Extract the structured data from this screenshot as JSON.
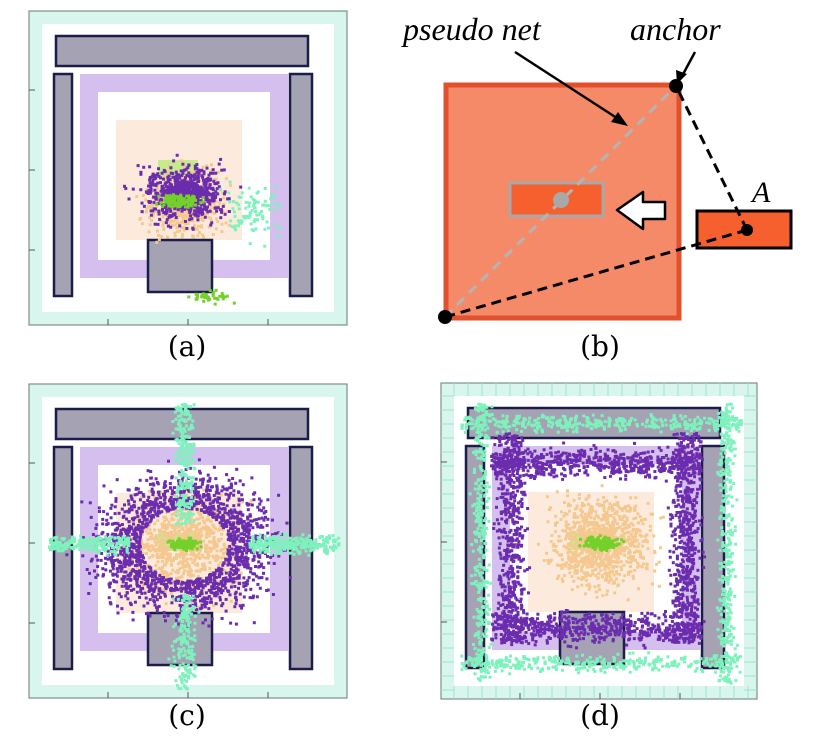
{
  "captions": {
    "a": "(a)",
    "b": "(b)",
    "c": "(c)",
    "d": "(d)"
  },
  "diagram_b": {
    "label_pseudo_net": "pseudo net",
    "label_anchor": "anchor",
    "label_A": "A"
  },
  "colors": {
    "frame_fill": "#d8f6ee",
    "frame_grid": "#9fe3cf",
    "macro_fill": "#a5a3b3",
    "macro_stroke": "#1c1c4a",
    "lavender": "#cdb4ec",
    "peach": "#fbe2cf",
    "purple_cells": "#6b2cae",
    "orange_cells": "#f5c88f",
    "green_cells": "#74d02a",
    "teal_cells": "#7ef2bd",
    "big_block": "#f58a68",
    "big_block_stroke": "#e2502e",
    "small_block": "#f5602e",
    "pseudo_net": "#a8a8a8"
  }
}
